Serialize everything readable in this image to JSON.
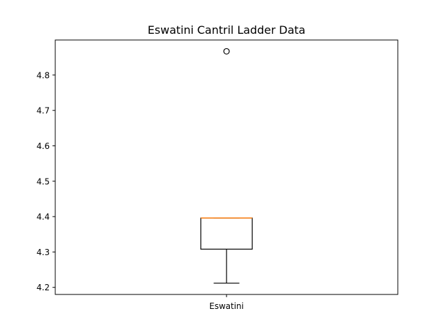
{
  "chart_data": {
    "type": "box",
    "title": "Eswatini Cantril Ladder Data",
    "xlabel": "",
    "ylabel": "",
    "categories": [
      "Eswatini"
    ],
    "boxes": [
      {
        "name": "Eswatini",
        "whisker_low": 4.212,
        "q1": 4.308,
        "median": 4.396,
        "q3": 4.396,
        "whisker_high": 4.396,
        "outliers": [
          4.867
        ]
      }
    ],
    "ylim": [
      4.18,
      4.899
    ],
    "yticks": [
      4.2,
      4.3,
      4.4,
      4.5,
      4.6,
      4.7,
      4.8
    ],
    "ytick_labels": [
      "4.2",
      "4.3",
      "4.4",
      "4.5",
      "4.6",
      "4.7",
      "4.8"
    ],
    "grid": false,
    "colors": {
      "box": "#000000",
      "median": "#ff7f0e",
      "outlier": "#000000"
    }
  }
}
